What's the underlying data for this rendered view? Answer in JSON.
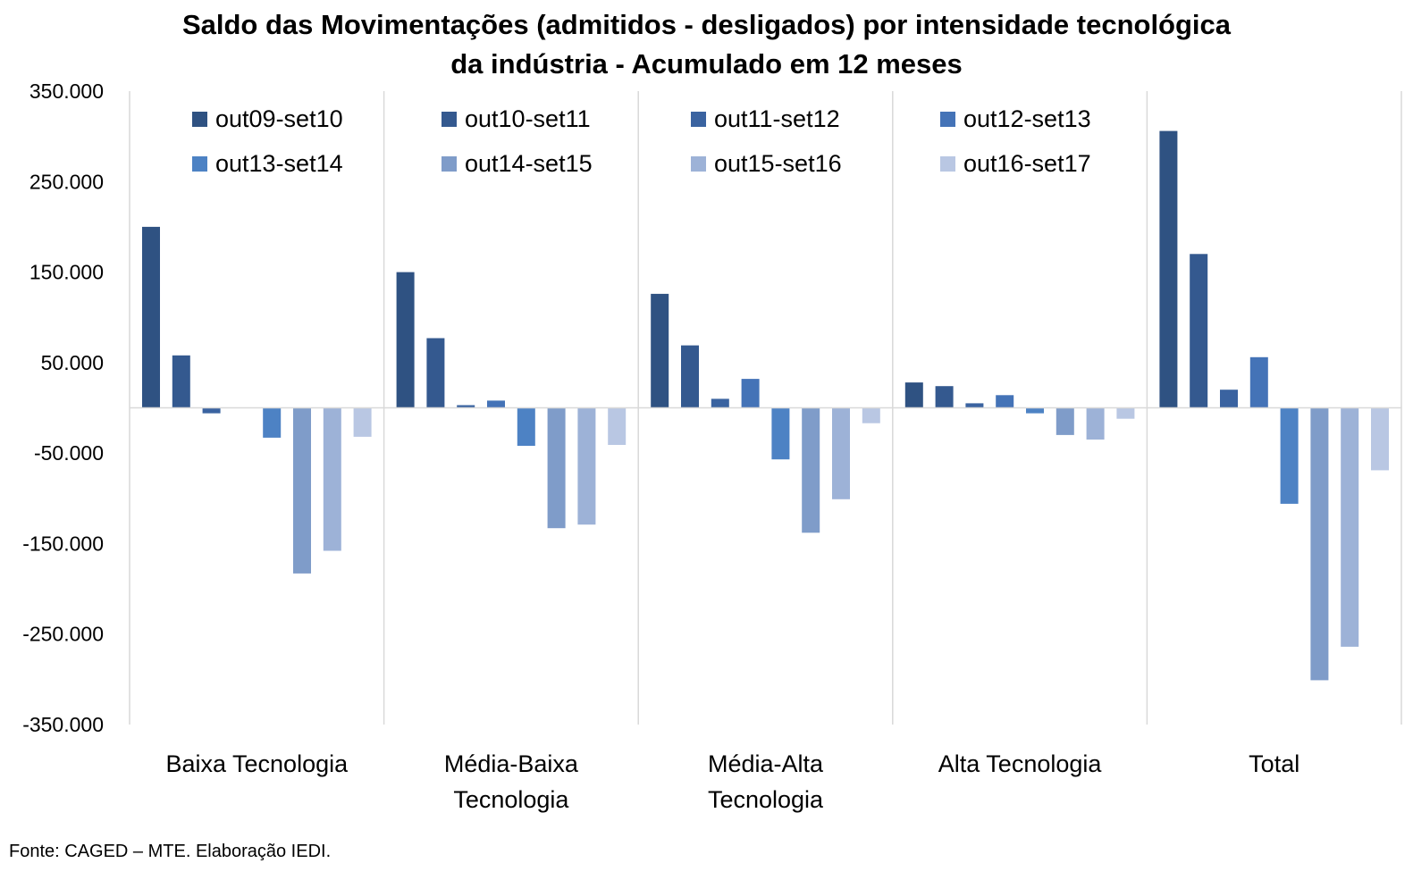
{
  "chart_data": {
    "type": "bar",
    "title_line1": "Saldo das Movimentações (admitidos - desligados) por intensidade tecnológica",
    "title_line2": "da indústria - Acumulado em 12 meses",
    "categories": [
      [
        "Baixa Tecnologia"
      ],
      [
        "Média-Baixa",
        "Tecnologia"
      ],
      [
        "Média-Alta",
        "Tecnologia"
      ],
      [
        "Alta Tecnologia"
      ],
      [
        "Total"
      ]
    ],
    "y_ticks": [
      "350.000",
      "250.000",
      "150.000",
      "50.000",
      "-50.000",
      "-150.000",
      "-250.000",
      "-350.000"
    ],
    "y_tick_values": [
      350000,
      250000,
      150000,
      50000,
      -50000,
      -150000,
      -250000,
      -350000
    ],
    "ylim": [
      -350000,
      350000
    ],
    "grid": false,
    "legend_position": "top",
    "series": [
      {
        "name": "out09-set10",
        "color": "#2F5282",
        "values": [
          200000,
          150000,
          126000,
          28000,
          306000
        ]
      },
      {
        "name": "out10-set11",
        "color": "#34598F",
        "values": [
          58000,
          77000,
          69000,
          24000,
          170000
        ]
      },
      {
        "name": "out11-set12",
        "color": "#3A63A0",
        "values": [
          -6000,
          3000,
          10000,
          5000,
          20000
        ]
      },
      {
        "name": "out12-set13",
        "color": "#4473B7",
        "values": [
          0,
          8000,
          32000,
          14000,
          56000
        ]
      },
      {
        "name": "out13-set14",
        "color": "#4D82C4",
        "values": [
          -33000,
          -42000,
          -57000,
          -6000,
          -106000
        ]
      },
      {
        "name": "out14-set15",
        "color": "#7F9CC9",
        "values": [
          -183000,
          -133000,
          -138000,
          -30000,
          -301000
        ]
      },
      {
        "name": "out15-set16",
        "color": "#9DB2D7",
        "values": [
          -158000,
          -129000,
          -101000,
          -35000,
          -264000
        ]
      },
      {
        "name": "out16-set17",
        "color": "#B9C7E3",
        "values": [
          -32000,
          -41000,
          -17000,
          -12000,
          -69000
        ]
      }
    ],
    "source": "Fonte: CAGED – MTE. Elaboração IEDI."
  }
}
